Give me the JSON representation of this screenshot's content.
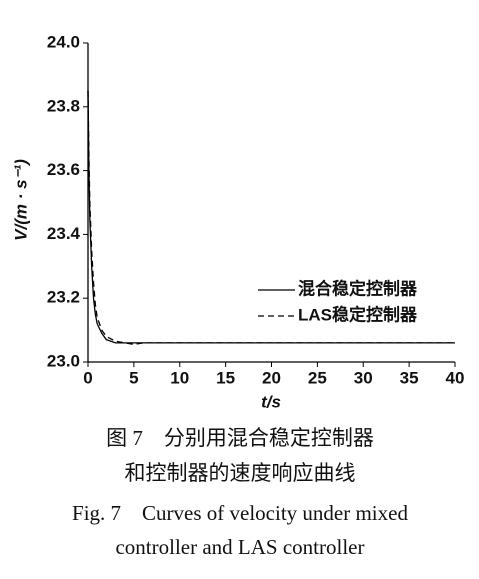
{
  "chart_data": {
    "type": "line",
    "x_label": "t/s",
    "y_label": "V/(m · s⁻¹)",
    "x": [
      0,
      0.1,
      0.2,
      0.4,
      0.6,
      0.8,
      1.0,
      1.5,
      2,
      3,
      4,
      5,
      6,
      10,
      20,
      30,
      40
    ],
    "series": [
      {
        "name": "混合稳定控制器",
        "color": "#000000",
        "dash": "solid",
        "values": [
          23.85,
          23.6,
          23.45,
          23.3,
          23.2,
          23.15,
          23.12,
          23.09,
          23.07,
          23.06,
          23.06,
          23.06,
          23.06,
          23.06,
          23.06,
          23.06,
          23.06
        ]
      },
      {
        "name": "LAS稳定控制器",
        "color": "#000000",
        "dash": "dashed",
        "values": [
          23.85,
          23.65,
          23.5,
          23.35,
          23.25,
          23.18,
          23.14,
          23.1,
          23.08,
          23.065,
          23.06,
          23.055,
          23.06,
          23.06,
          23.06,
          23.06,
          23.06
        ]
      }
    ],
    "xlim": [
      0,
      40
    ],
    "xticks": [
      0,
      5,
      10,
      15,
      20,
      25,
      30,
      35,
      40
    ],
    "ylim": [
      23.0,
      24.0
    ],
    "yticks": [
      {
        "value": 23.0,
        "label": "23.0"
      },
      23.2,
      23.4,
      23.6,
      23.8,
      {
        "value": 24.0,
        "label": "24.0"
      }
    ],
    "grid": false,
    "legend": "right"
  },
  "caption": [
    "图 7　分别用混合稳定控制器",
    "和控制器的速度响应曲线",
    "Fig. 7　Curves of velocity under mixed",
    "controller and LAS controller"
  ]
}
